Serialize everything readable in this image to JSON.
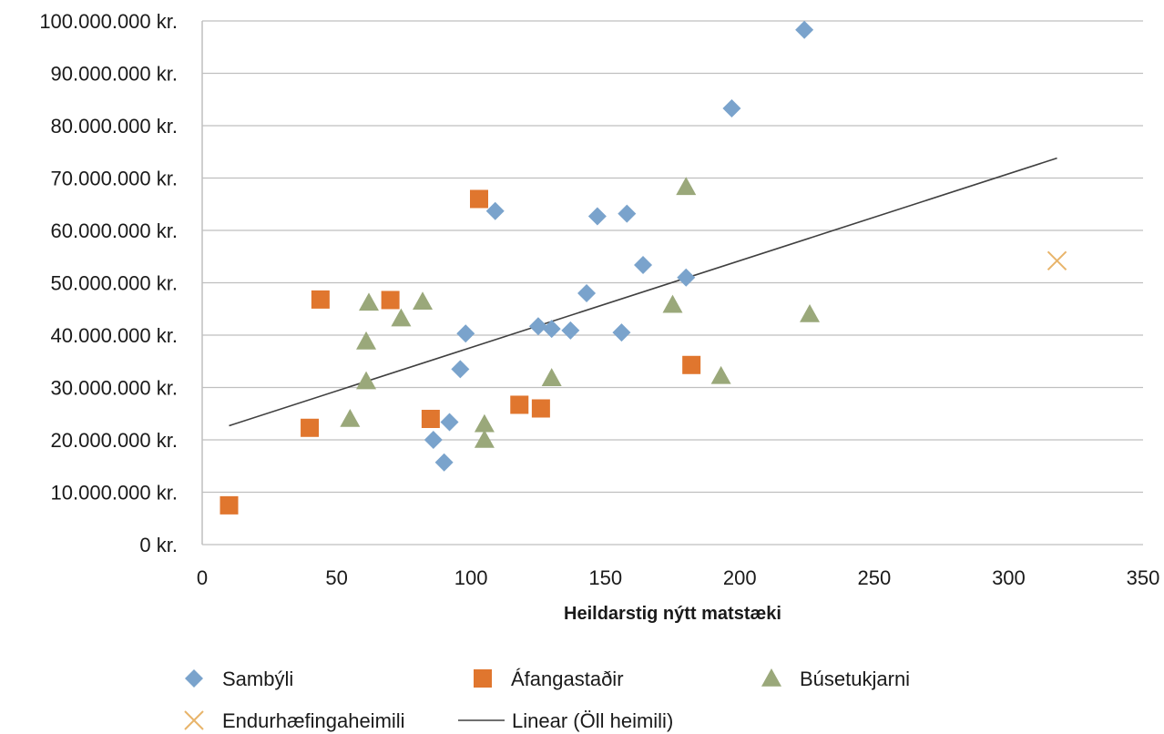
{
  "chart_data": {
    "type": "scatter",
    "title": "",
    "xlabel": "Heildarstig nýtt matstæki",
    "ylabel": "",
    "xlim": [
      0,
      350
    ],
    "ylim": [
      0,
      100000000
    ],
    "x_ticks": [
      0,
      50,
      100,
      150,
      200,
      250,
      300,
      350
    ],
    "x_tick_labels": [
      "0",
      "50",
      "100",
      "150",
      "200",
      "250",
      "300",
      "350"
    ],
    "y_ticks": [
      0,
      10000000,
      20000000,
      30000000,
      40000000,
      50000000,
      60000000,
      70000000,
      80000000,
      90000000,
      100000000
    ],
    "y_tick_labels": [
      "0 kr.",
      "10.000.000 kr.",
      "20.000.000 kr.",
      "30.000.000 kr.",
      "40.000.000 kr.",
      "50.000.000 kr.",
      "60.000.000 kr.",
      "70.000.000 kr.",
      "80.000.000 kr.",
      "90.000.000 kr.",
      "100.000.000 kr."
    ],
    "grid": "horizontal",
    "legend_position": "bottom",
    "series": [
      {
        "name": "Sambýli",
        "marker": "diamond",
        "color": "#7aa3cc",
        "points": [
          [
            224,
            98300000
          ],
          [
            197,
            83300000
          ],
          [
            109,
            63700000
          ],
          [
            147,
            62700000
          ],
          [
            158,
            63200000
          ],
          [
            164,
            53400000
          ],
          [
            180,
            51000000
          ],
          [
            143,
            48000000
          ],
          [
            98,
            40300000
          ],
          [
            125,
            41700000
          ],
          [
            130,
            41200000
          ],
          [
            137,
            40900000
          ],
          [
            156,
            40500000
          ],
          [
            96,
            33500000
          ],
          [
            92,
            23400000
          ],
          [
            86,
            20000000
          ],
          [
            90,
            15700000
          ]
        ]
      },
      {
        "name": "Áfangastaðir",
        "marker": "square",
        "color": "#e0762e",
        "points": [
          [
            103,
            66000000
          ],
          [
            44,
            46800000
          ],
          [
            70,
            46700000
          ],
          [
            182,
            34300000
          ],
          [
            118,
            26700000
          ],
          [
            126,
            26000000
          ],
          [
            85,
            24000000
          ],
          [
            40,
            22300000
          ],
          [
            10,
            7500000
          ]
        ]
      },
      {
        "name": "Búsetukjarni",
        "marker": "triangle",
        "color": "#9aa87a",
        "points": [
          [
            180,
            68300000
          ],
          [
            62,
            46200000
          ],
          [
            82,
            46400000
          ],
          [
            74,
            43200000
          ],
          [
            61,
            38800000
          ],
          [
            175,
            45800000
          ],
          [
            226,
            44000000
          ],
          [
            61,
            31200000
          ],
          [
            130,
            31800000
          ],
          [
            193,
            32200000
          ],
          [
            55,
            24000000
          ],
          [
            105,
            23000000
          ],
          [
            105,
            20000000
          ]
        ]
      },
      {
        "name": "Endurhæfingaheimili",
        "marker": "x",
        "color": "#e8b46a",
        "points": [
          [
            318,
            54200000
          ]
        ]
      }
    ],
    "trendline": {
      "name": "Linear (Öll heimili)",
      "type": "linear",
      "color": "#404040",
      "x_start": 10,
      "x_end": 318,
      "y_start": 22700000,
      "y_end": 73800000
    }
  }
}
